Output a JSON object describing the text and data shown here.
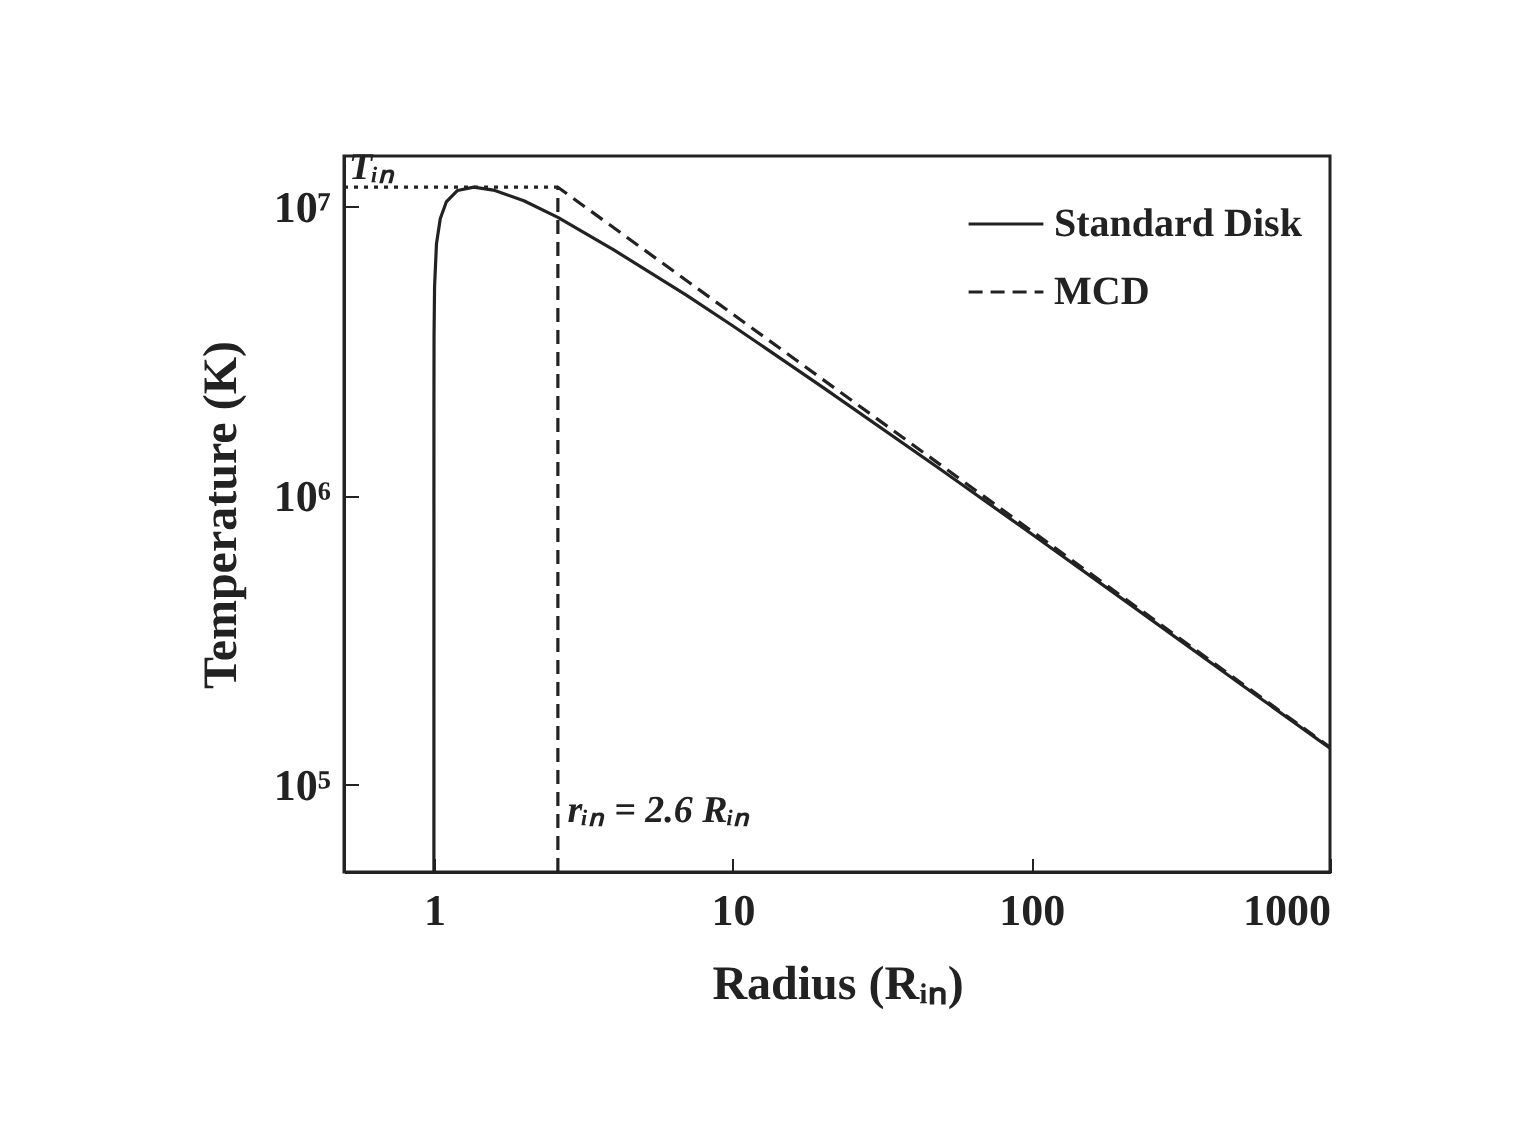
{
  "chart_data": {
    "type": "line",
    "xlabel": "Radius (Rᵢₙ)",
    "ylabel": "Temperature (K)",
    "log": "xy",
    "grid": false,
    "legend": "top right",
    "xlim": [
      0.5,
      1000
    ],
    "xticks": [
      1,
      10,
      100,
      1000
    ],
    "ylim": [
      50000,
      15000000
    ],
    "yticks": [
      {
        "value": 100000,
        "label": "10⁵"
      },
      {
        "value": 1000000,
        "label": "10⁶"
      },
      {
        "value": 10000000,
        "label": "10⁷"
      }
    ],
    "series": [
      {
        "name": "Standard Disk",
        "color": "#222222",
        "line_style": "solid",
        "x": [
          1.0,
          1.0001,
          1.001,
          1.005,
          1.02,
          1.05,
          1.1,
          1.2,
          1.36,
          1.6,
          2,
          2.6,
          4,
          7,
          10,
          20,
          50,
          100,
          200,
          500,
          1000
        ],
        "values": [
          50000,
          2000000,
          3600000,
          5300000,
          7460000,
          9100000,
          10400000,
          11400000,
          11700000,
          11400000,
          10500000,
          9200000,
          7100000,
          4950000,
          3880000,
          2380000,
          1230000,
          740000,
          443000,
          224000,
          134000
        ]
      },
      {
        "name": "MCD",
        "color": "#222222",
        "line_style": "dashed",
        "x": [
          2.6,
          2.6,
          10,
          100,
          1000
        ],
        "values": [
          50000,
          11700000,
          4260000,
          758000,
          135000
        ]
      },
      {
        "color": "#222222",
        "line_style": "dotted",
        "x": [
          0.5,
          2.6
        ],
        "values": [
          11700000,
          11700000
        ]
      }
    ],
    "annotations": [
      {
        "text": "Tᵢₙ",
        "x": 0.52,
        "y": 11700000
      },
      {
        "text": "rᵢₙ = 2.6 Rᵢₙ",
        "x": 2.8,
        "y": 70000
      }
    ]
  }
}
